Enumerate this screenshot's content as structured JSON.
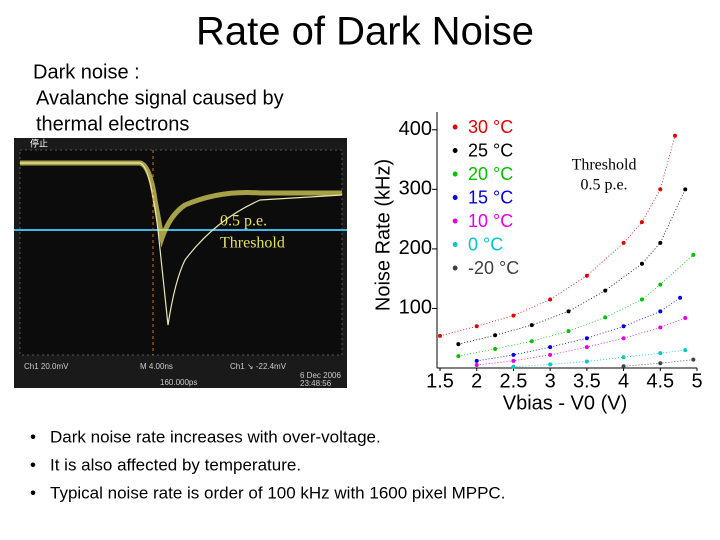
{
  "title": "Rate of Dark Noise",
  "intro": [
    "Dark noise :",
    "Avalanche signal caused by",
    "thermal electrons"
  ],
  "scope": {
    "level_label": "0.5 p.e.",
    "level_name": "Threshold",
    "status": "停止",
    "readouts": [
      "Ch1 20.0mV",
      "M 4.00ns",
      "Ch1 ↘ -22.4mV",
      "6 Dec 2006",
      "23:48:56",
      "160.000ps"
    ]
  },
  "bullets": [
    "Dark noise rate increases with over-voltage.",
    "It is also affected by temperature.",
    "Typical noise rate is order of 100 kHz with 1600 pixel MPPC."
  ],
  "chart_data": {
    "type": "line",
    "ylabel": "Noise Rate (kHz)",
    "xlabel": "Vbias - V0 (V)",
    "annotation": [
      "Threshold",
      "0.5 p.e."
    ],
    "xlim": [
      1.5,
      5
    ],
    "xticks": [
      1.5,
      2,
      2.5,
      3,
      3.5,
      4,
      4.5,
      5
    ],
    "ylim": [
      0,
      450
    ],
    "yticks": [
      100,
      200,
      300,
      400
    ],
    "series": [
      {
        "name": "30 °C",
        "color": "#e00000",
        "x": [
          1.5,
          2,
          2.5,
          3,
          3.5,
          4,
          4.25,
          4.5,
          4.7
        ],
        "values": [
          54,
          70,
          88,
          115,
          155,
          210,
          245,
          300,
          390
        ]
      },
      {
        "name": "25 °C",
        "color": "#000000",
        "x": [
          1.75,
          2.25,
          2.75,
          3.25,
          3.75,
          4.25,
          4.5,
          4.84
        ],
        "values": [
          40,
          55,
          72,
          95,
          130,
          175,
          210,
          300
        ]
      },
      {
        "name": "20 °C",
        "color": "#00c000",
        "x": [
          1.75,
          2.25,
          2.75,
          3.25,
          3.75,
          4.25,
          4.5,
          4.95
        ],
        "values": [
          20,
          32,
          45,
          62,
          85,
          115,
          140,
          190
        ]
      },
      {
        "name": "15 °C",
        "color": "#0000e0",
        "x": [
          2,
          2.5,
          3,
          3.5,
          4,
          4.5,
          4.77
        ],
        "values": [
          12,
          22,
          35,
          50,
          70,
          95,
          118
        ]
      },
      {
        "name": "10 °C",
        "color": "#e000e0",
        "x": [
          2,
          2.5,
          3,
          3.5,
          4,
          4.5,
          4.84
        ],
        "values": [
          5,
          12,
          22,
          35,
          50,
          68,
          84
        ]
      },
      {
        "name": "0 °C",
        "color": "#00c8c8",
        "x": [
          2.5,
          3,
          3.5,
          4,
          4.5,
          4.84
        ],
        "values": [
          2,
          6,
          11,
          18,
          25,
          30
        ]
      },
      {
        "name": "-20 °C",
        "color": "#404040",
        "x": [
          4,
          4.5,
          4.95
        ],
        "values": [
          3,
          8,
          14
        ]
      }
    ]
  }
}
